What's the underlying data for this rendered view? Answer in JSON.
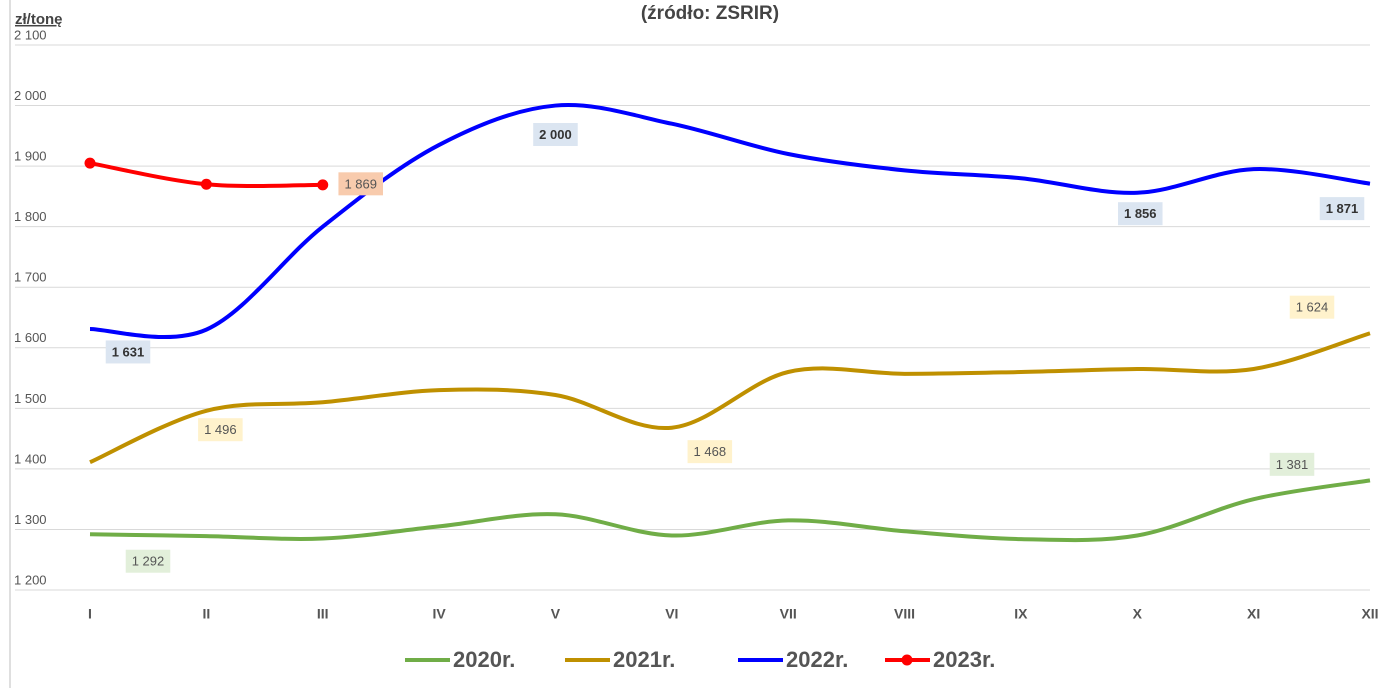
{
  "chart_data": {
    "type": "line",
    "title": "(źródło: ZSRIR)",
    "ylabel": "zł/tonę",
    "categories": [
      "I",
      "II",
      "III",
      "IV",
      "V",
      "VI",
      "VII",
      "VIII",
      "IX",
      "X",
      "XI",
      "XII"
    ],
    "ylim": [
      1200,
      2100
    ],
    "yticks": [
      {
        "value": 1200,
        "label": "1 200"
      },
      {
        "value": 1300,
        "label": "1 300"
      },
      {
        "value": 1400,
        "label": "1 400"
      },
      {
        "value": 1500,
        "label": "1 500"
      },
      {
        "value": 1600,
        "label": "1 600"
      },
      {
        "value": 1700,
        "label": "1 700"
      },
      {
        "value": 1800,
        "label": "1 800"
      },
      {
        "value": 1900,
        "label": "1 900"
      },
      {
        "value": 2000,
        "label": "2 000"
      },
      {
        "value": 2100,
        "label": "2 100"
      }
    ],
    "grid": true,
    "legend": "bottom",
    "series": [
      {
        "name": "2020r.",
        "color": "#70ad47",
        "values": [
          1292,
          1289,
          1285,
          1305,
          1325,
          1290,
          1315,
          1297,
          1284,
          1290,
          1350,
          1381
        ],
        "value_labels": [
          "1 292",
          null,
          null,
          null,
          null,
          null,
          null,
          null,
          null,
          null,
          null,
          "1 381"
        ]
      },
      {
        "name": "2021r.",
        "color": "#bf9000",
        "values": [
          1411,
          1496,
          1510,
          1530,
          1522,
          1468,
          1560,
          1557,
          1560,
          1565,
          1565,
          1624
        ],
        "value_labels": [
          null,
          "1 496",
          null,
          null,
          null,
          "1 468",
          null,
          null,
          null,
          null,
          null,
          "1 624"
        ]
      },
      {
        "name": "2022r.",
        "color": "#0000ff",
        "values": [
          1631,
          1630,
          1800,
          1935,
          2000,
          1970,
          1920,
          1893,
          1880,
          1856,
          1895,
          1871
        ],
        "value_labels": [
          "1 631",
          null,
          null,
          null,
          "2 000",
          null,
          null,
          null,
          null,
          "1 856",
          null,
          "1 871"
        ]
      },
      {
        "name": "2023r.",
        "color": "#ff0000",
        "marker": true,
        "values": [
          1905,
          1870,
          1869,
          null,
          null,
          null,
          null,
          null,
          null,
          null,
          null,
          null
        ],
        "value_labels": [
          null,
          null,
          "1 869",
          null,
          null,
          null,
          null,
          null,
          null,
          null,
          null,
          null
        ]
      }
    ]
  }
}
